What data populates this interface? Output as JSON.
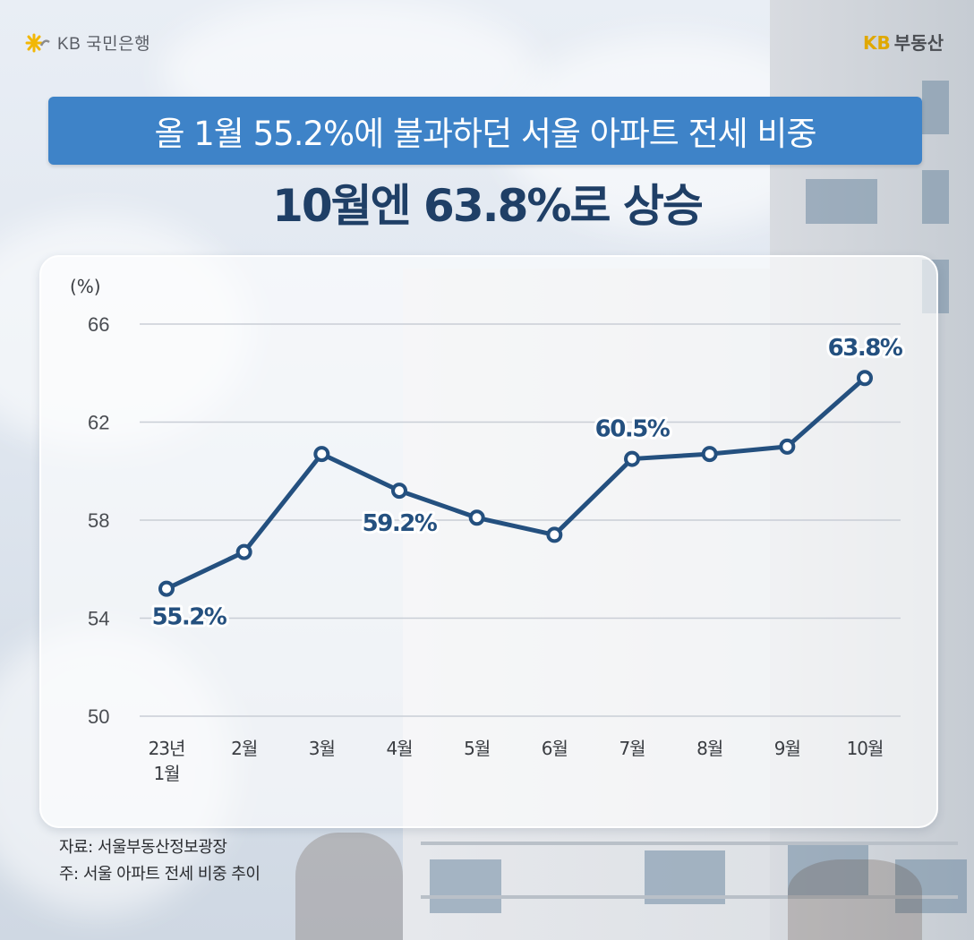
{
  "brand": {
    "left_text": "KB 국민은행",
    "right_kb": "KB",
    "right_text": "부동산"
  },
  "headline": {
    "title": "올 1월 55.2%에 불과하던 서울 아파트 전세 비중",
    "subtitle": "10월엔 63.8%로 상승"
  },
  "colors": {
    "accent": "#3e83c8",
    "line": "#24507f",
    "subtitle": "#1f3f66",
    "brand_kb": "#e0a800"
  },
  "chart_data": {
    "type": "line",
    "unit_label": "(%)",
    "categories": [
      "23년\n1월",
      "2월",
      "3월",
      "4월",
      "5월",
      "6월",
      "7월",
      "8월",
      "9월",
      "10월"
    ],
    "values": [
      55.2,
      56.7,
      60.7,
      59.2,
      58.1,
      57.4,
      60.5,
      60.7,
      61.0,
      63.8
    ],
    "ylim": [
      50,
      66
    ],
    "yticks": [
      50,
      54,
      58,
      62,
      66
    ],
    "grid": true,
    "data_labels": [
      {
        "index": 0,
        "text": "55.2%"
      },
      {
        "index": 3,
        "text": "59.2%"
      },
      {
        "index": 6,
        "text": "60.5%"
      },
      {
        "index": 9,
        "text": "63.8%"
      }
    ]
  },
  "footnotes": {
    "source": "자료: 서울부동산정보광장",
    "note": "주: 서울 아파트 전세 비중 추이"
  }
}
